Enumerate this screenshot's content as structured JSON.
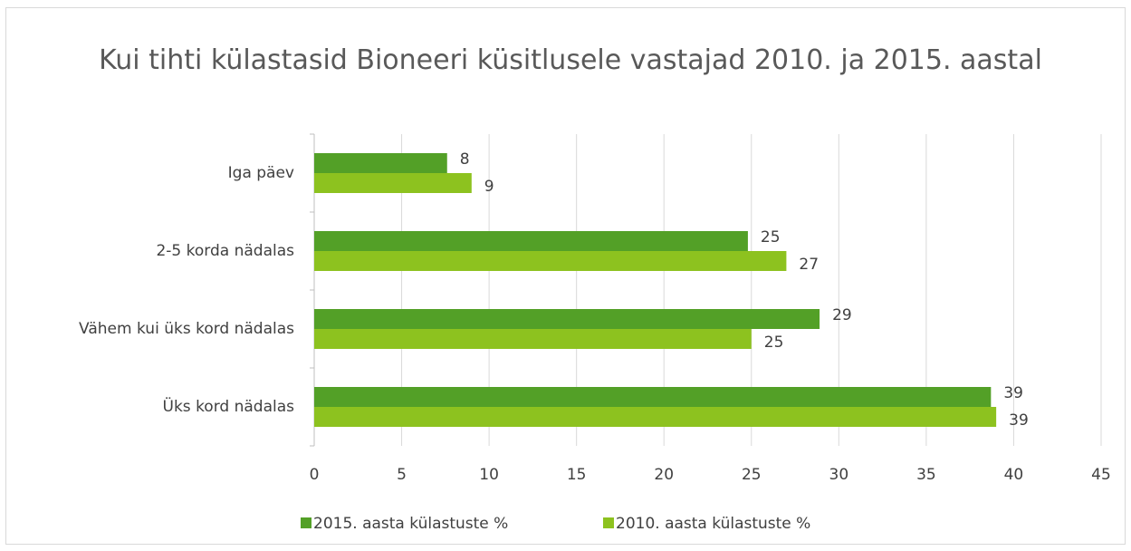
{
  "chart_data": {
    "type": "hbar",
    "title": "Kui tihti külastasid Bioneeri küsitlusele vastajad 2010. ja 2015. aastal",
    "categories": [
      "Iga päev",
      "2-5 korda nädalas",
      "Vähem kui üks kord nädalas",
      "Üks kord nädalas"
    ],
    "series": [
      {
        "name": "2015. aasta külastuste %",
        "color": "#53a027",
        "values": [
          7.6,
          24.8,
          28.9,
          38.7
        ],
        "value_labels": [
          "8",
          "25",
          "29",
          "39"
        ]
      },
      {
        "name": "2010. aasta külastuste %",
        "color": "#8dc21f",
        "values": [
          9,
          27,
          25,
          39
        ]
      }
    ],
    "xlim": [
      0,
      45
    ],
    "xticks": [
      0,
      5,
      10,
      15,
      20,
      25,
      30,
      35,
      40,
      45
    ],
    "grid": true,
    "legend": "bottom"
  }
}
